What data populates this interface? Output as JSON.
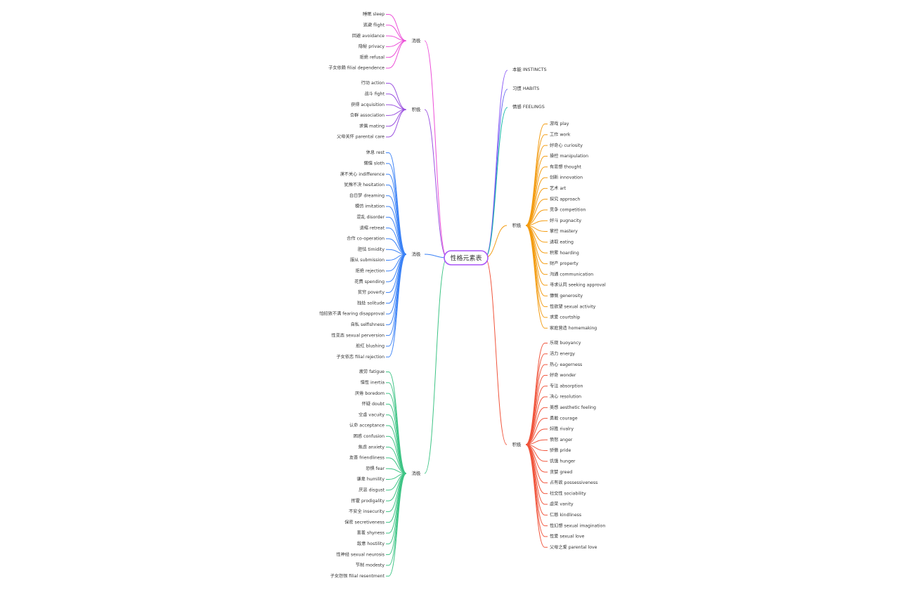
{
  "root": {
    "label": "性格元素表",
    "color": "#a855f7"
  },
  "right_top": [
    {
      "label": "本能 INSTINCTS",
      "color": "#8b5cf6"
    },
    {
      "label": "习惯 HABITS",
      "color": "#6366f1"
    },
    {
      "label": "情感 FEELINGS",
      "color": "#14b8a6"
    }
  ],
  "branches": [
    {
      "id": "l1",
      "side": "left",
      "label": "消极",
      "color": "#ec4fd8",
      "items": [
        "睡眠 sleep",
        "逃避 flight",
        "回避 avoidance",
        "隐秘 privacy",
        "拒绝 refusal",
        "子女依赖 filial dependence"
      ]
    },
    {
      "id": "l2",
      "side": "left",
      "label": "积极",
      "color": "#9b51e0",
      "items": [
        "行动 action",
        "战斗 fight",
        "获得 acquisition",
        "合群 association",
        "求偶 mating",
        "父母关怀 parental care"
      ]
    },
    {
      "id": "l3",
      "side": "left",
      "label": "消极",
      "color": "#3b82f6",
      "items": [
        "休息 rest",
        "懒惰 sloth",
        "漠不关心 indifference",
        "犹豫不决 hesitation",
        "白日梦 dreaming",
        "模仿 imitation",
        "混乱 disorder",
        "退缩 retreat",
        "合作 co-operation",
        "胆怯 timidity",
        "服从 submission",
        "拒绝 rejection",
        "花费 spending",
        "贫穷 poverty",
        "独处 solitude",
        "怕招致不满 fearing disapproval",
        "自私 selfishness",
        "性变态 sexual perversion",
        "脸红 blushing",
        "子女依恋 filial rejection"
      ]
    },
    {
      "id": "l4",
      "side": "left",
      "label": "消极",
      "color": "#3ec485",
      "items": [
        "疲劳 fatigue",
        "惰性 inertia",
        "厌倦 boredom",
        "怀疑 doubt",
        "空虚 vacuity",
        "认命 acceptance",
        "困惑 confusion",
        "焦虑 anxiety",
        "友善 friendliness",
        "恐惧 fear",
        "谦卑 humility",
        "厌恶 disgust",
        "挥霍 prodigality",
        "不安全 insecurity",
        "保密 secretiveness",
        "害羞 shyness",
        "敌意 hostility",
        "性神经 sexual neurosis",
        "节制 modesty",
        "子女怨恨 filial resentment"
      ]
    },
    {
      "id": "r1",
      "side": "right",
      "label": "积极",
      "color": "#f39c12",
      "items": [
        "游戏 play",
        "工作 work",
        "好奇心 curiosity",
        "操控 manipulation",
        "有思想 thought",
        "创新 innovation",
        "艺术 art",
        "探究 approach",
        "竞争 competition",
        "好斗 pugnacity",
        "掌控 mastery",
        "进取 eating",
        "积累 hoarding",
        "财产 property",
        "沟通 communication",
        "寻求认同 seeking approval",
        "慷慨 generosity",
        "性欲望 sexual activity",
        "求爱 courtship",
        "家庭营造 homemaking"
      ]
    },
    {
      "id": "r2",
      "side": "right",
      "label": "积极",
      "color": "#f0553c",
      "items": [
        "乐观 buoyancy",
        "活力 energy",
        "热心 eagerness",
        "好奇 wonder",
        "专注 absorption",
        "决心 resolution",
        "美感 aesthetic feeling",
        "勇敢 courage",
        "好胜 rivalry",
        "愤怒 anger",
        "骄傲 pride",
        "饥饿 hunger",
        "贪婪 greed",
        "占有欲 possessiveness",
        "社交性 sociability",
        "虚荣 vanity",
        "仁慈 kindliness",
        "性幻想 sexual imagination",
        "性爱 sexual love",
        "父母之爱 parental love"
      ]
    }
  ]
}
